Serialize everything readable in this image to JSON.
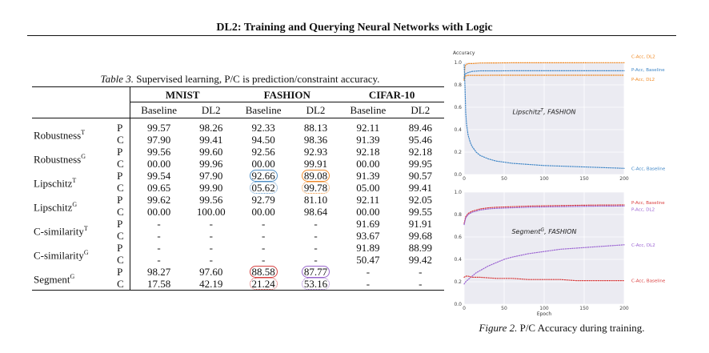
{
  "header": {
    "title": "DL2: Training and Querying Neural Networks with Logic"
  },
  "table": {
    "caption_label": "Table 3.",
    "caption_text": "Supervised learning, P/C is prediction/constraint accuracy.",
    "groups": [
      "MNIST",
      "FASHION",
      "CIFAR-10"
    ],
    "subheaders": [
      "Baseline",
      "DL2",
      "Baseline",
      "DL2",
      "Baseline",
      "DL2"
    ],
    "rows": [
      {
        "name": "Robustness",
        "sup": "T",
        "p": [
          "99.57",
          "98.26",
          "92.33",
          "88.13",
          "92.11",
          "89.46"
        ],
        "c": [
          "97.90",
          "99.41",
          "94.50",
          "98.36",
          "91.39",
          "95.46"
        ]
      },
      {
        "name": "Robustness",
        "sup": "G",
        "p": [
          "99.56",
          "99.60",
          "92.56",
          "92.93",
          "92.18",
          "92.18"
        ],
        "c": [
          "00.00",
          "99.96",
          "00.00",
          "99.91",
          "00.00",
          "99.95"
        ]
      },
      {
        "name": "Lipschitz",
        "sup": "T",
        "p": [
          "99.54",
          "97.90",
          "92.66",
          "89.08",
          "91.39",
          "90.57"
        ],
        "c": [
          "09.65",
          "99.90",
          "05.62",
          "99.78",
          "05.00",
          "99.41"
        ]
      },
      {
        "name": "Lipschitz",
        "sup": "G",
        "p": [
          "99.62",
          "99.56",
          "92.79",
          "81.10",
          "92.11",
          "92.05"
        ],
        "c": [
          "00.00",
          "100.00",
          "00.00",
          "98.64",
          "00.00",
          "99.55"
        ]
      },
      {
        "name": "C-similarity",
        "sup": "T",
        "p": [
          "-",
          "-",
          "-",
          "-",
          "91.69",
          "91.91"
        ],
        "c": [
          "-",
          "-",
          "-",
          "-",
          "93.67",
          "99.68"
        ]
      },
      {
        "name": "C-similarity",
        "sup": "G",
        "p": [
          "-",
          "-",
          "-",
          "-",
          "91.89",
          "88.99"
        ],
        "c": [
          "-",
          "-",
          "-",
          "-",
          "50.47",
          "99.42"
        ]
      },
      {
        "name": "Segment",
        "sup": "G",
        "p": [
          "98.27",
          "97.60",
          "88.58",
          "87.77",
          "-",
          "-"
        ],
        "c": [
          "17.58",
          "42.19",
          "21.24",
          "53.16",
          "-",
          "-"
        ]
      }
    ]
  },
  "figure": {
    "caption_label": "Figure 2.",
    "caption_text": "P/C Accuracy during training.",
    "colors": {
      "blue": "#3d85c6",
      "orange": "#f08a24",
      "red": "#d93b3b",
      "purple": "#9a62d2"
    }
  },
  "chart_data": [
    {
      "type": "line",
      "title": "Lipschitz^T, FASHION",
      "ylabel": "Accuracy",
      "xlabel": "",
      "xlim": [
        0,
        200
      ],
      "ylim": [
        0,
        1.0
      ],
      "xticks": [
        0,
        50,
        100,
        150,
        200
      ],
      "yticks": [
        0.0,
        0.2,
        0.4,
        0.6,
        0.8,
        1.0
      ],
      "series": [
        {
          "name": "C-Acc, DL2",
          "color": "orange",
          "x": [
            0,
            1,
            2,
            5,
            10,
            20,
            40,
            60,
            80,
            100,
            120,
            140,
            160,
            180,
            200
          ],
          "y": [
            0.85,
            0.96,
            0.98,
            0.99,
            0.99,
            0.995,
            0.996,
            0.997,
            0.997,
            0.997,
            0.997,
            0.997,
            0.998,
            0.998,
            0.998
          ]
        },
        {
          "name": "P-Acc, Baseline",
          "color": "blue",
          "x": [
            0,
            1,
            2,
            5,
            10,
            20,
            40,
            60,
            80,
            100,
            120,
            140,
            160,
            180,
            200
          ],
          "y": [
            0.86,
            0.89,
            0.9,
            0.91,
            0.92,
            0.925,
            0.925,
            0.926,
            0.926,
            0.926,
            0.926,
            0.926,
            0.926,
            0.926,
            0.926
          ]
        },
        {
          "name": "P-Acc, DL2",
          "color": "orange",
          "x": [
            0,
            1,
            2,
            5,
            10,
            20,
            40,
            60,
            80,
            100,
            120,
            140,
            160,
            180,
            200
          ],
          "y": [
            0.84,
            0.87,
            0.88,
            0.885,
            0.885,
            0.885,
            0.886,
            0.886,
            0.886,
            0.886,
            0.886,
            0.886,
            0.886,
            0.886,
            0.886
          ]
        },
        {
          "name": "C-Acc, Baseline",
          "color": "blue",
          "x": [
            0,
            1,
            2,
            3,
            5,
            8,
            10,
            15,
            20,
            30,
            40,
            60,
            80,
            100,
            120,
            140,
            160,
            180,
            200
          ],
          "y": [
            0.98,
            0.8,
            0.55,
            0.45,
            0.35,
            0.28,
            0.25,
            0.2,
            0.17,
            0.14,
            0.12,
            0.1,
            0.09,
            0.08,
            0.075,
            0.07,
            0.065,
            0.06,
            0.055
          ]
        }
      ]
    },
    {
      "type": "line",
      "title": "Segment^G, FASHION",
      "ylabel": "",
      "xlabel": "Epoch",
      "xlim": [
        0,
        200
      ],
      "ylim": [
        0,
        1.0
      ],
      "xticks": [
        0,
        50,
        100,
        150,
        200
      ],
      "yticks": [
        0.0,
        0.2,
        0.4,
        0.6,
        0.8,
        1.0
      ],
      "series": [
        {
          "name": "P-Acc, Baseline",
          "color": "red",
          "x": [
            0,
            2,
            5,
            10,
            20,
            30,
            40,
            60,
            80,
            100,
            120,
            140,
            160,
            180,
            200
          ],
          "y": [
            0.72,
            0.78,
            0.81,
            0.83,
            0.85,
            0.86,
            0.865,
            0.87,
            0.875,
            0.878,
            0.88,
            0.882,
            0.884,
            0.885,
            0.886
          ]
        },
        {
          "name": "P-Acc, DL2",
          "color": "purple",
          "x": [
            0,
            2,
            5,
            10,
            20,
            30,
            40,
            60,
            80,
            100,
            120,
            140,
            160,
            180,
            200
          ],
          "y": [
            0.71,
            0.77,
            0.8,
            0.82,
            0.84,
            0.85,
            0.855,
            0.86,
            0.865,
            0.868,
            0.87,
            0.872,
            0.874,
            0.875,
            0.876
          ]
        },
        {
          "name": "C-Acc, DL2",
          "color": "purple",
          "x": [
            0,
            2,
            5,
            10,
            15,
            20,
            30,
            40,
            50,
            60,
            80,
            100,
            120,
            140,
            160,
            180,
            200
          ],
          "y": [
            0.18,
            0.2,
            0.22,
            0.25,
            0.28,
            0.3,
            0.34,
            0.37,
            0.4,
            0.42,
            0.45,
            0.47,
            0.49,
            0.5,
            0.51,
            0.52,
            0.53
          ]
        },
        {
          "name": "C-Acc, Baseline",
          "color": "red",
          "x": [
            0,
            2,
            5,
            10,
            20,
            40,
            60,
            80,
            100,
            120,
            140,
            160,
            180,
            200
          ],
          "y": [
            0.24,
            0.25,
            0.25,
            0.24,
            0.24,
            0.23,
            0.23,
            0.22,
            0.22,
            0.22,
            0.21,
            0.21,
            0.21,
            0.21
          ]
        }
      ]
    }
  ]
}
